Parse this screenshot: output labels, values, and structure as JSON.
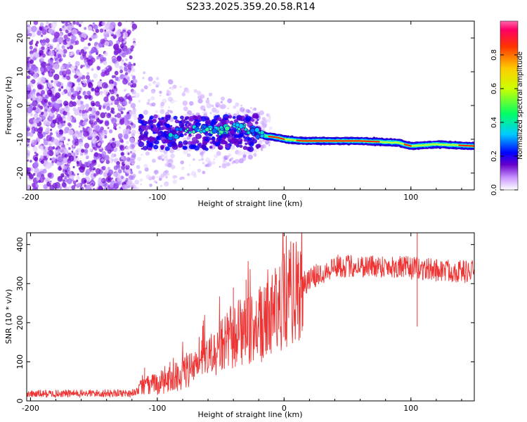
{
  "title": "S233.2025.359.20.58.R14",
  "chart_data": [
    {
      "type": "heatmap",
      "xlabel": "Height of straight line (km)",
      "ylabel": "Frequency (Hz)",
      "xlim": [
        -203,
        150
      ],
      "ylim": [
        -25,
        25
      ],
      "xticks": [
        -200,
        -100,
        0,
        100
      ],
      "yticks": [
        -20,
        -10,
        0,
        10,
        20
      ],
      "colorbar": {
        "label": "Normalized spectral amplitude",
        "range": [
          0,
          1
        ],
        "ticks": [
          0,
          0.2,
          0.4,
          0.6,
          0.8
        ],
        "tick_labels": [
          "0.0",
          "0.2",
          "0.4",
          "0.6",
          "0.8"
        ],
        "colormap": [
          "#ffffff",
          "#cc99ff",
          "#6600cc",
          "#0000ff",
          "#00ccff",
          "#00ff66",
          "#ccff00",
          "#ffcc00",
          "#ff3300",
          "#ff0066",
          "#ff66aa"
        ]
      },
      "ridge": {
        "description_points": [
          [
            -110,
            -7.5
          ],
          [
            -90,
            -8.5
          ],
          [
            -70,
            -7.5
          ],
          [
            -50,
            -7.5
          ],
          [
            -35,
            -6.5
          ],
          [
            -25,
            -7.5
          ],
          [
            -15,
            -9
          ],
          [
            -5,
            -9.5
          ],
          [
            0,
            -10
          ],
          [
            15,
            -10.5
          ],
          [
            30,
            -10.5
          ],
          [
            60,
            -10.5
          ],
          [
            90,
            -11
          ],
          [
            100,
            -12
          ],
          [
            120,
            -11.5
          ],
          [
            150,
            -12
          ]
        ]
      }
    },
    {
      "type": "line",
      "xlabel": "Height of straight line (km)",
      "ylabel": "SNR (10 * v/v)",
      "xlim": [
        -203,
        150
      ],
      "ylim": [
        0,
        430
      ],
      "xticks": [
        -200,
        -100,
        0,
        100
      ],
      "yticks": [
        0,
        100,
        200,
        300,
        400
      ],
      "line_color": "#ee3333",
      "envelope": {
        "x": [
          -203,
          -120,
          -110,
          -90,
          -70,
          -55,
          -45,
          -35,
          -25,
          -15,
          -5,
          5,
          15,
          25,
          40,
          60,
          80,
          100,
          120,
          150
        ],
        "y": [
          18,
          20,
          35,
          55,
          85,
          120,
          150,
          170,
          180,
          195,
          240,
          270,
          300,
          320,
          345,
          345,
          345,
          340,
          335,
          330
        ]
      },
      "spikes": [
        [
          -110,
          85
        ],
        [
          -90,
          100
        ],
        [
          -65,
          155
        ],
        [
          -40,
          290
        ],
        [
          -30,
          310
        ],
        [
          -20,
          250
        ],
        [
          -10,
          290
        ],
        [
          5,
          380
        ],
        [
          105,
          430
        ],
        [
          105,
          190
        ]
      ]
    }
  ]
}
